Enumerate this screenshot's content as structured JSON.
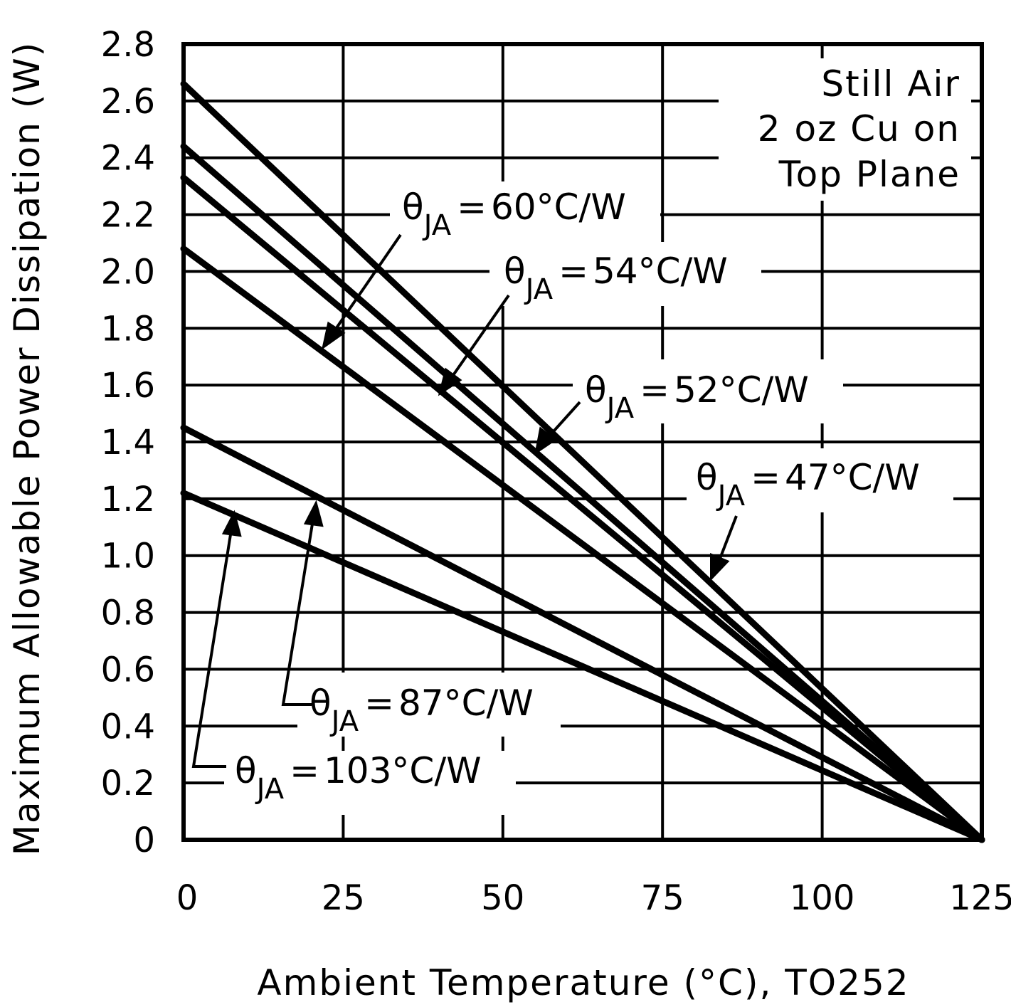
{
  "chart_data": {
    "type": "line",
    "title": "",
    "xlabel": "Ambient Temperature (°C), TO252",
    "ylabel": "Maximum Allowable Power Dissipation (W)",
    "xlim": [
      0,
      125
    ],
    "ylim": [
      0,
      2.8
    ],
    "grid": true,
    "x_ticks": [
      "0",
      "25",
      "50",
      "75",
      "100",
      "125"
    ],
    "y_ticks": [
      "0",
      "0.2",
      "0.4",
      "0.6",
      "0.8",
      "1.0",
      "1.2",
      "1.4",
      "1.6",
      "1.8",
      "2.0",
      "2.2",
      "2.4",
      "2.6",
      "2.8"
    ],
    "note": [
      "Still Air",
      "2 oz Cu on",
      "Top Plane"
    ],
    "series": [
      {
        "name": "θJA = 47°C/W",
        "theta_value": "47",
        "x": [
          0,
          125
        ],
        "y": [
          2.66,
          0
        ]
      },
      {
        "name": "θJA = 52°C/W",
        "theta_value": "52",
        "x": [
          0,
          125
        ],
        "y": [
          2.44,
          0
        ]
      },
      {
        "name": "θJA = 54°C/W",
        "theta_value": "54",
        "x": [
          0,
          125
        ],
        "y": [
          2.33,
          0
        ]
      },
      {
        "name": "θJA = 60°C/W",
        "theta_value": "60",
        "x": [
          0,
          125
        ],
        "y": [
          2.08,
          0
        ]
      },
      {
        "name": "θJA = 87°C/W",
        "theta_value": "87",
        "x": [
          0,
          125
        ],
        "y": [
          1.45,
          0
        ]
      },
      {
        "name": "θJA = 103°C/W",
        "theta_value": "103",
        "x": [
          0,
          125
        ],
        "y": [
          1.22,
          0
        ]
      }
    ],
    "annotation_text": {
      "theta": "θ",
      "sub": "JA",
      "eq": "=",
      "unit": "°C/W"
    }
  }
}
